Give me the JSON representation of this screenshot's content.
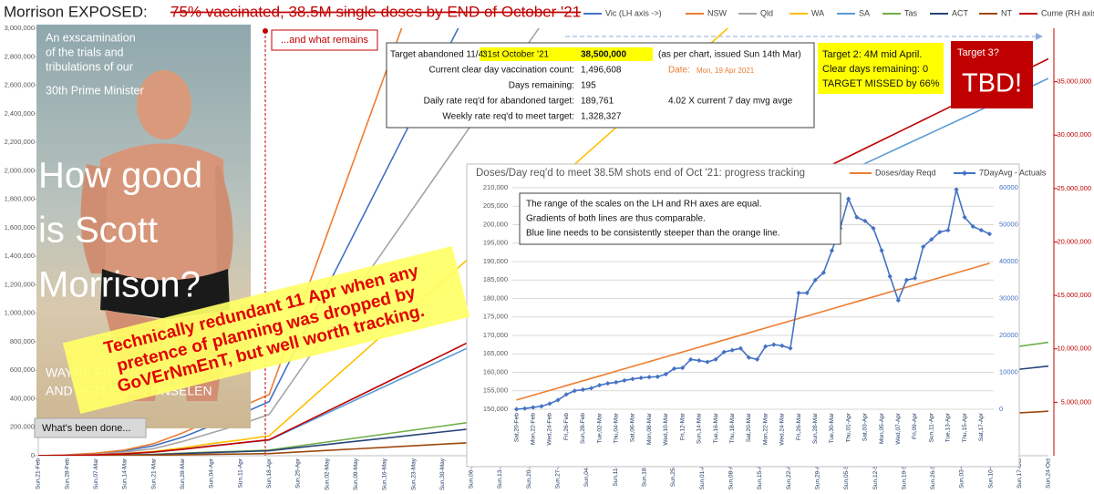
{
  "chart_data": [
    {
      "type": "line",
      "title": "Morrison EXPOSED:",
      "subtitle": "75% vaccinated, 38.5M single doses by END of October '21",
      "categories": [
        "Sun,21-Feb",
        "Sun,28-Feb",
        "Sun,07-Mar",
        "Sun,14-Mar",
        "Sun,21-Mar",
        "Sun,28-Mar",
        "Sun,04-Apr",
        "Sun,11-Apr",
        "Sun,18-Apr",
        "Sun,25-Apr",
        "Sun,02-May",
        "Sun,09-May",
        "Sun,16-May",
        "Sun,23-May",
        "Sun,30-May",
        "Sun,06-Jun",
        "Sun,13-Jun",
        "Sun,20-Jun",
        "Sun,27-Jun",
        "Sun,04-Jul",
        "Sun,11-Jul",
        "Sun,18-Jul",
        "Sun,25-Jul",
        "Sun,01-Aug",
        "Sun,08-Aug",
        "Sun,15-Aug",
        "Sun,22-Aug",
        "Sun,29-Aug",
        "Sun,05-Sep",
        "Sun,12-Sep",
        "Sun,19-Sep",
        "Sun,26-Sep",
        "Sun,03-Oct",
        "Sun,10-Oct",
        "Sun,17-Oct",
        "Sun,24-Oct"
      ],
      "series": [
        {
          "name": "Vic (LH axis ->)",
          "color": "#4472c4",
          "values": [
            0,
            5000,
            15000,
            35000,
            70000,
            130000,
            210000,
            290000,
            380000,
            780000,
            1180000,
            1580000,
            1980000,
            2380000,
            2780000,
            3180000,
            null,
            null,
            null,
            null,
            null,
            null,
            null,
            null,
            null,
            null,
            null,
            null,
            null,
            null,
            null,
            null,
            null,
            null,
            null,
            null
          ]
        },
        {
          "name": "NSW",
          "color": "#ed7d31",
          "values": [
            0,
            6000,
            18000,
            40000,
            85000,
            160000,
            250000,
            340000,
            430000,
            990000,
            1550000,
            2110000,
            2670000,
            3230000,
            null,
            null,
            null,
            null,
            null,
            null,
            null,
            null,
            null,
            null,
            null,
            null,
            null,
            null,
            null,
            null,
            null,
            null,
            null,
            null,
            null,
            null
          ]
        },
        {
          "name": "Qld",
          "color": "#a5a5a5",
          "values": [
            0,
            3000,
            10000,
            25000,
            50000,
            100000,
            160000,
            220000,
            290000,
            580000,
            870000,
            1160000,
            1450000,
            1740000,
            2030000,
            2320000,
            2610000,
            2900000,
            3190000,
            null,
            null,
            null,
            null,
            null,
            null,
            null,
            null,
            null,
            null,
            null,
            null,
            null,
            null,
            null,
            null,
            null
          ]
        },
        {
          "name": "WA",
          "color": "#ffc000",
          "values": [
            0,
            2000,
            6000,
            15000,
            30000,
            55000,
            85000,
            110000,
            140000,
            320000,
            500000,
            680000,
            860000,
            1040000,
            1220000,
            1400000,
            1580000,
            1760000,
            1940000,
            2120000,
            2300000,
            2480000,
            2660000,
            2840000,
            3020000,
            null,
            null,
            null,
            null,
            null,
            null,
            null,
            null,
            null,
            null,
            null
          ]
        },
        {
          "name": "SA",
          "color": "#5b9bd5",
          "values": [
            0,
            2000,
            5000,
            12000,
            25000,
            45000,
            70000,
            90000,
            110000,
            204000,
            298000,
            392000,
            486000,
            580000,
            674000,
            768000,
            862000,
            956000,
            1050000,
            1144000,
            1238000,
            1332000,
            1426000,
            1520000,
            1614000,
            1708000,
            1802000,
            1896000,
            1990000,
            2084000,
            2178000,
            2272000,
            2366000,
            2460000,
            2554000,
            2648000
          ]
        },
        {
          "name": "Tas",
          "color": "#70ad47",
          "values": [
            0,
            1000,
            2000,
            5000,
            10000,
            18000,
            25000,
            32000,
            40000,
            68000,
            96000,
            124000,
            152000,
            180000,
            208000,
            236000,
            264000,
            292000,
            320000,
            348000,
            376000,
            404000,
            432000,
            460000,
            488000,
            516000,
            544000,
            572000,
            600000,
            628000,
            656000,
            684000,
            712000,
            740000,
            768000,
            796000
          ]
        },
        {
          "name": "ACT",
          "color": "#264478",
          "values": [
            0,
            1000,
            2000,
            4000,
            8000,
            15000,
            22000,
            28000,
            35000,
            57000,
            79000,
            101000,
            123000,
            145000,
            167000,
            189000,
            211000,
            233000,
            255000,
            277000,
            299000,
            321000,
            343000,
            365000,
            387000,
            409000,
            431000,
            453000,
            475000,
            497000,
            519000,
            541000,
            563000,
            585000,
            607000,
            629000
          ]
        },
        {
          "name": "NT",
          "color": "#9e480e",
          "values": [
            0,
            500,
            1000,
            2000,
            4000,
            7000,
            10000,
            12000,
            15000,
            26000,
            37000,
            48000,
            59000,
            70000,
            81000,
            92000,
            103000,
            114000,
            125000,
            136000,
            147000,
            158000,
            169000,
            180000,
            191000,
            202000,
            213000,
            224000,
            235000,
            246000,
            257000,
            268000,
            279000,
            290000,
            301000,
            312000
          ]
        },
        {
          "name": "Cume (RH axis)",
          "color": "#c00000",
          "axis": "y2",
          "values": [
            0,
            30000,
            80000,
            180000,
            350000,
            600000,
            900000,
            1200000,
            1500000,
            2820000,
            4140000,
            5460000,
            6780000,
            8100000,
            9420000,
            10740000,
            12060000,
            13380000,
            14700000,
            16020000,
            17340000,
            18660000,
            19980000,
            21300000,
            22620000,
            23940000,
            25260000,
            26580000,
            27900000,
            29220000,
            30540000,
            31860000,
            33180000,
            34500000,
            35820000,
            37140000
          ]
        }
      ],
      "ylim": [
        0,
        3000000
      ],
      "yticks": [
        0,
        {
          "value": 200000,
          "label": "200,000"
        },
        {
          "value": 400000,
          "label": "400,000"
        },
        {
          "value": 600000,
          "label": "600,000"
        },
        {
          "value": 800000,
          "label": "800,000"
        },
        {
          "value": 1000000,
          "label": "1,000,000"
        },
        {
          "value": 1200000,
          "label": "1,200,000"
        },
        {
          "value": 1400000,
          "label": "1,400,000"
        },
        {
          "value": 1600000,
          "label": "1,600,000"
        },
        {
          "value": 1800000,
          "label": "1,800,000"
        },
        {
          "value": 2000000,
          "label": "2,000,000"
        },
        {
          "value": 2200000,
          "label": "2,200,000"
        },
        {
          "value": 2400000,
          "label": "2,400,000"
        },
        {
          "value": 2600000,
          "label": "2,600,000"
        },
        {
          "value": 2800000,
          "label": "2,800,000"
        },
        {
          "value": 3000000,
          "label": "3,000,000"
        }
      ],
      "y2lim": [
        0,
        40000000
      ],
      "y2ticks": [
        {
          "value": 5000000,
          "label": "5,000,000"
        },
        {
          "value": 10000000,
          "label": "10,000,000"
        },
        {
          "value": 15000000,
          "label": "15,000,000"
        },
        {
          "value": 20000000,
          "label": "20,000,000"
        },
        {
          "value": 25000000,
          "label": "25,000,000"
        },
        {
          "value": 30000000,
          "label": "30,000,000"
        },
        {
          "value": 35000000,
          "label": "35,000,000"
        }
      ],
      "y2_color": "#c00000",
      "grid": false,
      "legend": "top"
    },
    {
      "type": "line",
      "title": "Doses/Day req'd to meet 38.5M shots end of Oct '21: progress tracking",
      "categories": [
        "Sat,20-Feb",
        null,
        "Mon,22-Feb",
        null,
        "Wed,24-Feb",
        null,
        "Fri,26-Feb",
        null,
        "Sun,28-Feb",
        null,
        "Tue,02-Mar",
        null,
        "Thu,04-Mar",
        null,
        "Sat,06-Mar",
        null,
        "Mon,08-Mar",
        null,
        "Wed,10-Mar",
        null,
        "Fri,12-Mar",
        null,
        "Sun,14-Mar",
        null,
        "Tue,16-Mar",
        null,
        "Thu,18-Mar",
        null,
        "Sat,20-Mar",
        null,
        "Mon,22-Mar",
        null,
        "Wed,24-Mar",
        null,
        "Fri,26-Mar",
        null,
        "Sun,28-Mar",
        null,
        "Tue,30-Mar",
        null,
        "Thu,01-Apr",
        null,
        "Sat,03-Apr",
        null,
        "Mon,05-Apr",
        null,
        "Wed,07-Apr",
        null,
        "Fri,09-Apr",
        null,
        "Sun,11-Apr",
        null,
        "Tue,13-Apr",
        null,
        "Thu,15-Apr",
        null,
        "Sat,17-Apr",
        null
      ],
      "series": [
        {
          "name": "Doses/day Reqd",
          "color": "#ed7d31",
          "values": [
            152500,
            153150,
            153800,
            154450,
            155100,
            155750,
            156400,
            157050,
            157700,
            158350,
            159000,
            159650,
            160300,
            160950,
            161600,
            162250,
            162900,
            163550,
            164200,
            164850,
            165500,
            166150,
            166800,
            167450,
            168100,
            168750,
            169400,
            170050,
            170700,
            171350,
            172000,
            172650,
            173300,
            173950,
            174600,
            175250,
            175900,
            176550,
            177200,
            177850,
            178500,
            179150,
            179800,
            180450,
            181100,
            181750,
            182400,
            183050,
            183700,
            184350,
            185000,
            185650,
            186300,
            186950,
            187600,
            188250,
            188900,
            189550
          ]
        },
        {
          "name": "7DayAvg - Actuals",
          "color": "#4472c4",
          "axis": "y2",
          "marker": "diamond",
          "values": [
            0,
            200,
            500,
            800,
            1500,
            2500,
            4000,
            5000,
            5300,
            5700,
            6500,
            7000,
            7300,
            7800,
            8200,
            8500,
            8700,
            8800,
            9500,
            11000,
            11200,
            13500,
            13200,
            12800,
            13500,
            15500,
            16000,
            16500,
            14000,
            13500,
            17000,
            17500,
            17200,
            16500,
            31500,
            31500,
            35000,
            37000,
            43000,
            49000,
            57000,
            52000,
            51000,
            49000,
            43000,
            36000,
            29500,
            35000,
            35500,
            44000,
            46000,
            48000,
            48500,
            59500,
            52000,
            49500,
            48500,
            47500
          ]
        }
      ],
      "ylim": [
        150000,
        210000
      ],
      "yticks": [
        {
          "value": 150000,
          "label": "150,000"
        },
        {
          "value": 155000,
          "label": "155,000"
        },
        {
          "value": 160000,
          "label": "160,000"
        },
        {
          "value": 165000,
          "label": "165,000"
        },
        {
          "value": 170000,
          "label": "170,000"
        },
        {
          "value": 175000,
          "label": "175,000"
        },
        {
          "value": 180000,
          "label": "180,000"
        },
        {
          "value": 185000,
          "label": "185,000"
        },
        {
          "value": 190000,
          "label": "190,000"
        },
        {
          "value": 195000,
          "label": "195,000"
        },
        {
          "value": 200000,
          "label": "200,000"
        },
        {
          "value": 205000,
          "label": "205,000"
        },
        {
          "value": 210000,
          "label": "210,000"
        }
      ],
      "y2lim": [
        0,
        60000
      ],
      "y2ticks": [
        0,
        10000,
        20000,
        30000,
        40000,
        50000,
        60000
      ],
      "y2_color": "#4472c4",
      "grid": true,
      "legend": "top right",
      "note": [
        "The range of the scales on the LH and RH axes are equal.",
        "Gradients of both lines are thus comparable.",
        "Blue line needs to be consistently steeper than the orange line."
      ]
    }
  ],
  "photo": {
    "blurb": [
      "An exscamination",
      "of the trials and",
      "tribulations of our",
      "30th Prime Minister"
    ],
    "book_title": [
      "How good",
      "is Scott",
      "Morrison?"
    ],
    "authors": [
      "WAYNE ERRINGTON",
      "AND PETER VAN ONSELEN"
    ]
  },
  "labels": {
    "remains": "...and what remains",
    "done": "What's been done..."
  },
  "info_box": {
    "target_label": "Target abandoned 11/4:",
    "target_date": "31st October '21",
    "target_value": "38,500,000",
    "target_note": "(as per chart, issued Sun 14th Mar)",
    "rows": [
      {
        "label": "Current clear day vaccination count:",
        "value": "1,496,608"
      },
      {
        "label": "Days remaining:",
        "value": "195"
      },
      {
        "label": "Daily rate req'd for abandoned target:",
        "value": "189,761"
      },
      {
        "label": "Weekly rate req'd to meet target:",
        "value": "1,328,327"
      }
    ],
    "date_label": "Date:",
    "date_value": "Mon, 19 Apr 2021",
    "ratio_note": "4.02 X current 7 day mvg avge"
  },
  "target2": [
    "Target 2: 4M mid April.",
    "Clear days remaining: 0",
    "TARGET MISSED by 66%"
  ],
  "target3": {
    "question": "Target 3?",
    "answer": "TBD!"
  },
  "banner": [
    "Technically redundant 11 Apr when any",
    "pretence of planning was dropped by",
    "GoVErNmEnT, but well worth tracking."
  ]
}
